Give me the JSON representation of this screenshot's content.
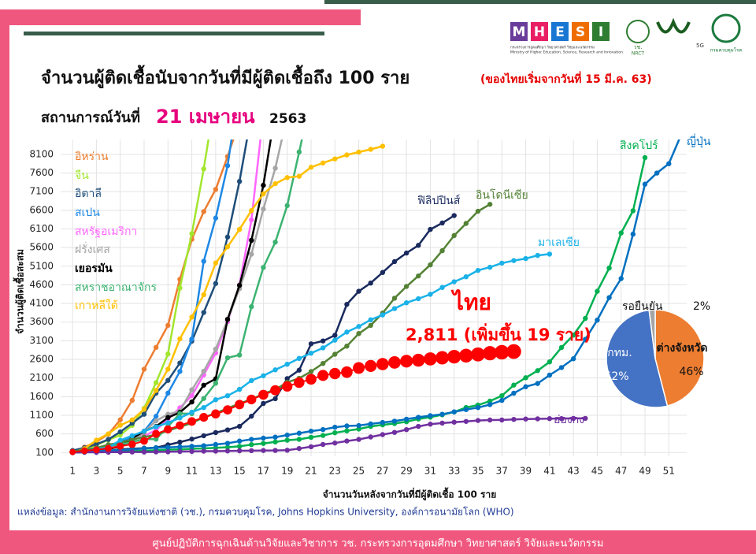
{
  "header": {
    "title": "จำนวนผู้ติดเชื้อนับจากวันที่มีผู้ติดเชื้อถึง 100 ราย",
    "title_note": "(ของไทยเริ่มจากวันที่ 15 มี.ค. 63)",
    "status_label": "สถานการณ์วันที่",
    "status_date": "21 เมษายน",
    "status_year": "2563",
    "logo_letters": [
      "M",
      "H",
      "E",
      "S",
      "I"
    ],
    "logo_th": "กระทรวงการอุดมศึกษา วิทยาศาสตร์ วิจัยและนวัตกรรม",
    "logo_en": "Ministry of Higher Education, Science, Research and Innovation",
    "nrct": "วช.",
    "nrct_en": "NRCT",
    "g5": "5G",
    "ddc": "กรมควบคุมโรค"
  },
  "chart_data": [
    {
      "type": "line",
      "x_label": "จำนวนวันหลังจากวันที่มีผู้ติดเชื้อ 100 ราย",
      "y_label": "จำนวนผู้ติดเชื้อสะสม",
      "xlim": [
        0,
        52.5
      ],
      "xticks": [
        1,
        3,
        5,
        7,
        9,
        11,
        13,
        15,
        17,
        19,
        21,
        23,
        25,
        27,
        29,
        31,
        33,
        35,
        37,
        39,
        41,
        43,
        45,
        47,
        49,
        51
      ],
      "ylim": [
        0,
        8500
      ],
      "yticks": [
        100,
        600,
        1100,
        1600,
        2100,
        2600,
        3100,
        3600,
        4100,
        4600,
        5100,
        5600,
        6100,
        6600,
        7100,
        7600,
        8100
      ],
      "grid": true,
      "series": [
        {
          "name": "อิหร่าน",
          "color": "#ed7d31",
          "values": [
            100,
            245,
            388,
            593,
            978,
            1501,
            2336,
            2922,
            3513,
            4747,
            5823,
            6566,
            7161,
            8042,
            9000
          ]
        },
        {
          "name": "จีน",
          "color": "#a2e62e",
          "values": [
            100,
            200,
            300,
            440,
            571,
            830,
            1287,
            1975,
            2744,
            4515,
            5974,
            7711,
            9692
          ]
        },
        {
          "name": "อิตาลี",
          "color": "#1f4e79",
          "values": [
            155,
            229,
            322,
            453,
            655,
            888,
            1128,
            1694,
            2036,
            2502,
            3089,
            3858,
            4636,
            5883,
            7375,
            9172
          ]
        },
        {
          "name": "สเปน",
          "color": "#1e88e5",
          "values": [
            100,
            165,
            222,
            259,
            400,
            500,
            673,
            1073,
            1695,
            2277,
            3146,
            5232,
            6391,
            7798,
            9942
          ]
        },
        {
          "name": "สหรัฐอเมริกา",
          "color": "#ff66ff",
          "values": [
            100,
            124,
            158,
            221,
            319,
            435,
            541,
            704,
            994,
            1301,
            1630,
            2183,
            2770,
            3613,
            4596,
            6344,
            9197
          ]
        },
        {
          "name": "ฝรั่งเศส",
          "color": "#a6a6a6",
          "values": [
            100,
            130,
            191,
            204,
            285,
            377,
            653,
            949,
            1126,
            1209,
            1784,
            2281,
            2876,
            3661,
            4499,
            5423,
            6633,
            7730,
            9134
          ]
        },
        {
          "name": "เยอรมัน",
          "color": "#000000",
          "values": [
            100,
            130,
            159,
            196,
            262,
            482,
            670,
            799,
            1040,
            1176,
            1457,
            1908,
            2078,
            3675,
            4585,
            5795,
            7272,
            9257
          ]
        },
        {
          "name": "สหราชอาณาจักร",
          "color": "#3cb371",
          "values": [
            116,
            164,
            207,
            274,
            322,
            384,
            459,
            459,
            802,
            1144,
            1145,
            1551,
            1960,
            2642,
            2716,
            4014,
            5067,
            5745,
            6726,
            8164,
            9640
          ]
        },
        {
          "name": "เกาหลีใต้",
          "color": "#ffc000",
          "values": [
            104,
            204,
            433,
            602,
            833,
            977,
            1261,
            1766,
            2337,
            3150,
            3736,
            4335,
            5186,
            5621,
            6088,
            6593,
            7041,
            7314,
            7478,
            7513,
            7755,
            7869,
            7979,
            8086,
            8162,
            8236,
            8320
          ]
        },
        {
          "name": "ฟิลิปปินส์",
          "color": "#1a2a5e",
          "values": [
            100,
            111,
            140,
            142,
            187,
            202,
            217,
            230,
            307,
            380,
            462,
            552,
            636,
            707,
            803,
            1075,
            1418,
            1546,
            2084,
            2311,
            3018,
            3094,
            3246,
            4076,
            4428,
            4648,
            4932,
            5223,
            5453,
            5660,
            6087,
            6259,
            6459
          ]
        },
        {
          "name": "อินโดนีเซีย",
          "color": "#548235",
          "values": [
            134,
            172,
            227,
            309,
            369,
            450,
            514,
            579,
            686,
            790,
            893,
            1046,
            1155,
            1285,
            1414,
            1528,
            1677,
            1790,
            1986,
            2092,
            2273,
            2491,
            2738,
            2956,
            3293,
            3512,
            3842,
            4241,
            4557,
            4839,
            5136,
            5516,
            5923,
            6248,
            6575,
            6760
          ]
        },
        {
          "name": "มาเลเซีย",
          "color": "#1ab2e8",
          "values": [
            117,
            125,
            197,
            238,
            428,
            553,
            673,
            790,
            900,
            1030,
            1183,
            1306,
            1518,
            1624,
            1796,
            2031,
            2161,
            2320,
            2470,
            2626,
            2766,
            2908,
            3116,
            3333,
            3483,
            3662,
            3793,
            3963,
            4119,
            4228,
            4346,
            4530,
            4683,
            4817,
            4987,
            5072,
            5182,
            5251,
            5305,
            5389,
            5425
          ]
        },
        {
          "name": "สิงคโปร์",
          "color": "#00b050",
          "values": [
            102,
            108,
            110,
            117,
            130,
            138,
            150,
            160,
            178,
            187,
            200,
            212,
            226,
            243,
            266,
            313,
            345,
            385,
            432,
            455,
            509,
            558,
            631,
            683,
            732,
            802,
            844,
            879,
            926,
            1000,
            1049,
            1114,
            1189,
            1309,
            1375,
            1481,
            1623,
            1910,
            2108,
            2299,
            2532,
            2918,
            3252,
            3699,
            4427,
            5050,
            5992,
            6588,
            8014
          ]
        },
        {
          "name": "ญี่ปุ่น",
          "color": "#0070c0",
          "values": [
            105,
            132,
            144,
            156,
            164,
            186,
            210,
            230,
            239,
            254,
            268,
            284,
            317,
            348,
            407,
            454,
            487,
            514,
            568,
            619,
            675,
            716,
            780,
            814,
            824,
            868,
            907,
            943,
            996,
            1046,
            1089,
            1128,
            1193,
            1254,
            1307,
            1387,
            1499,
            1693,
            1866,
            1953,
            2178,
            2381,
            2617,
            3139,
            3654,
            4257,
            4768,
            5960,
            7300,
            7600,
            7850,
            8600
          ]
        },
        {
          "name": "ฮ่องกง",
          "color": "#7030a0",
          "values": [
            100,
            105,
            107,
            109,
            110,
            114,
            115,
            117,
            120,
            126,
            131,
            137,
            138,
            142,
            148,
            150,
            155,
            157,
            162,
            208,
            256,
            317,
            356,
            410,
            453,
            518,
            582,
            641,
            715,
            802,
            862,
            890,
            915,
            935,
            960,
            973,
            974,
            990,
            1000,
            1005,
            1010,
            1012,
            1016,
            1017
          ]
        },
        {
          "name": "ไทย",
          "color": "#ff0000",
          "values": [
            114,
            147,
            177,
            212,
            272,
            322,
            411,
            599,
            721,
            827,
            934,
            1045,
            1136,
            1245,
            1388,
            1524,
            1651,
            1771,
            1875,
            1978,
            2067,
            2169,
            2220,
            2258,
            2369,
            2423,
            2473,
            2518,
            2551,
            2579,
            2613,
            2643,
            2672,
            2700,
            2733,
            2765,
            2792,
            2811
          ]
        }
      ],
      "annotation": "2,811 (เพิ่มขึ้น 19 ราย)"
    },
    {
      "type": "pie",
      "categories": [
        "กทม.",
        "ต่างจังหวัด",
        "รอยืนยัน"
      ],
      "values": [
        52,
        46,
        2
      ],
      "value_labels": [
        "52%",
        "46%",
        "2%"
      ],
      "colors": [
        "#4472c4",
        "#ed7d31",
        "#a5a5a5"
      ]
    }
  ],
  "source": "แหล่งข้อมูล: สำนักงานการวิจัยแห่งชาติ (วช.), กรมควบคุมโรค, Johns Hopkins University, องค์การอนามัยโลก (WHO)",
  "footer": "ศูนย์ปฏิบัติการฉุกเฉินด้านวิจัยและวิชาการ   วช.   กระทรวงการอุดมศึกษา วิทยาศาสตร์ วิจัยและนวัตกรรม"
}
